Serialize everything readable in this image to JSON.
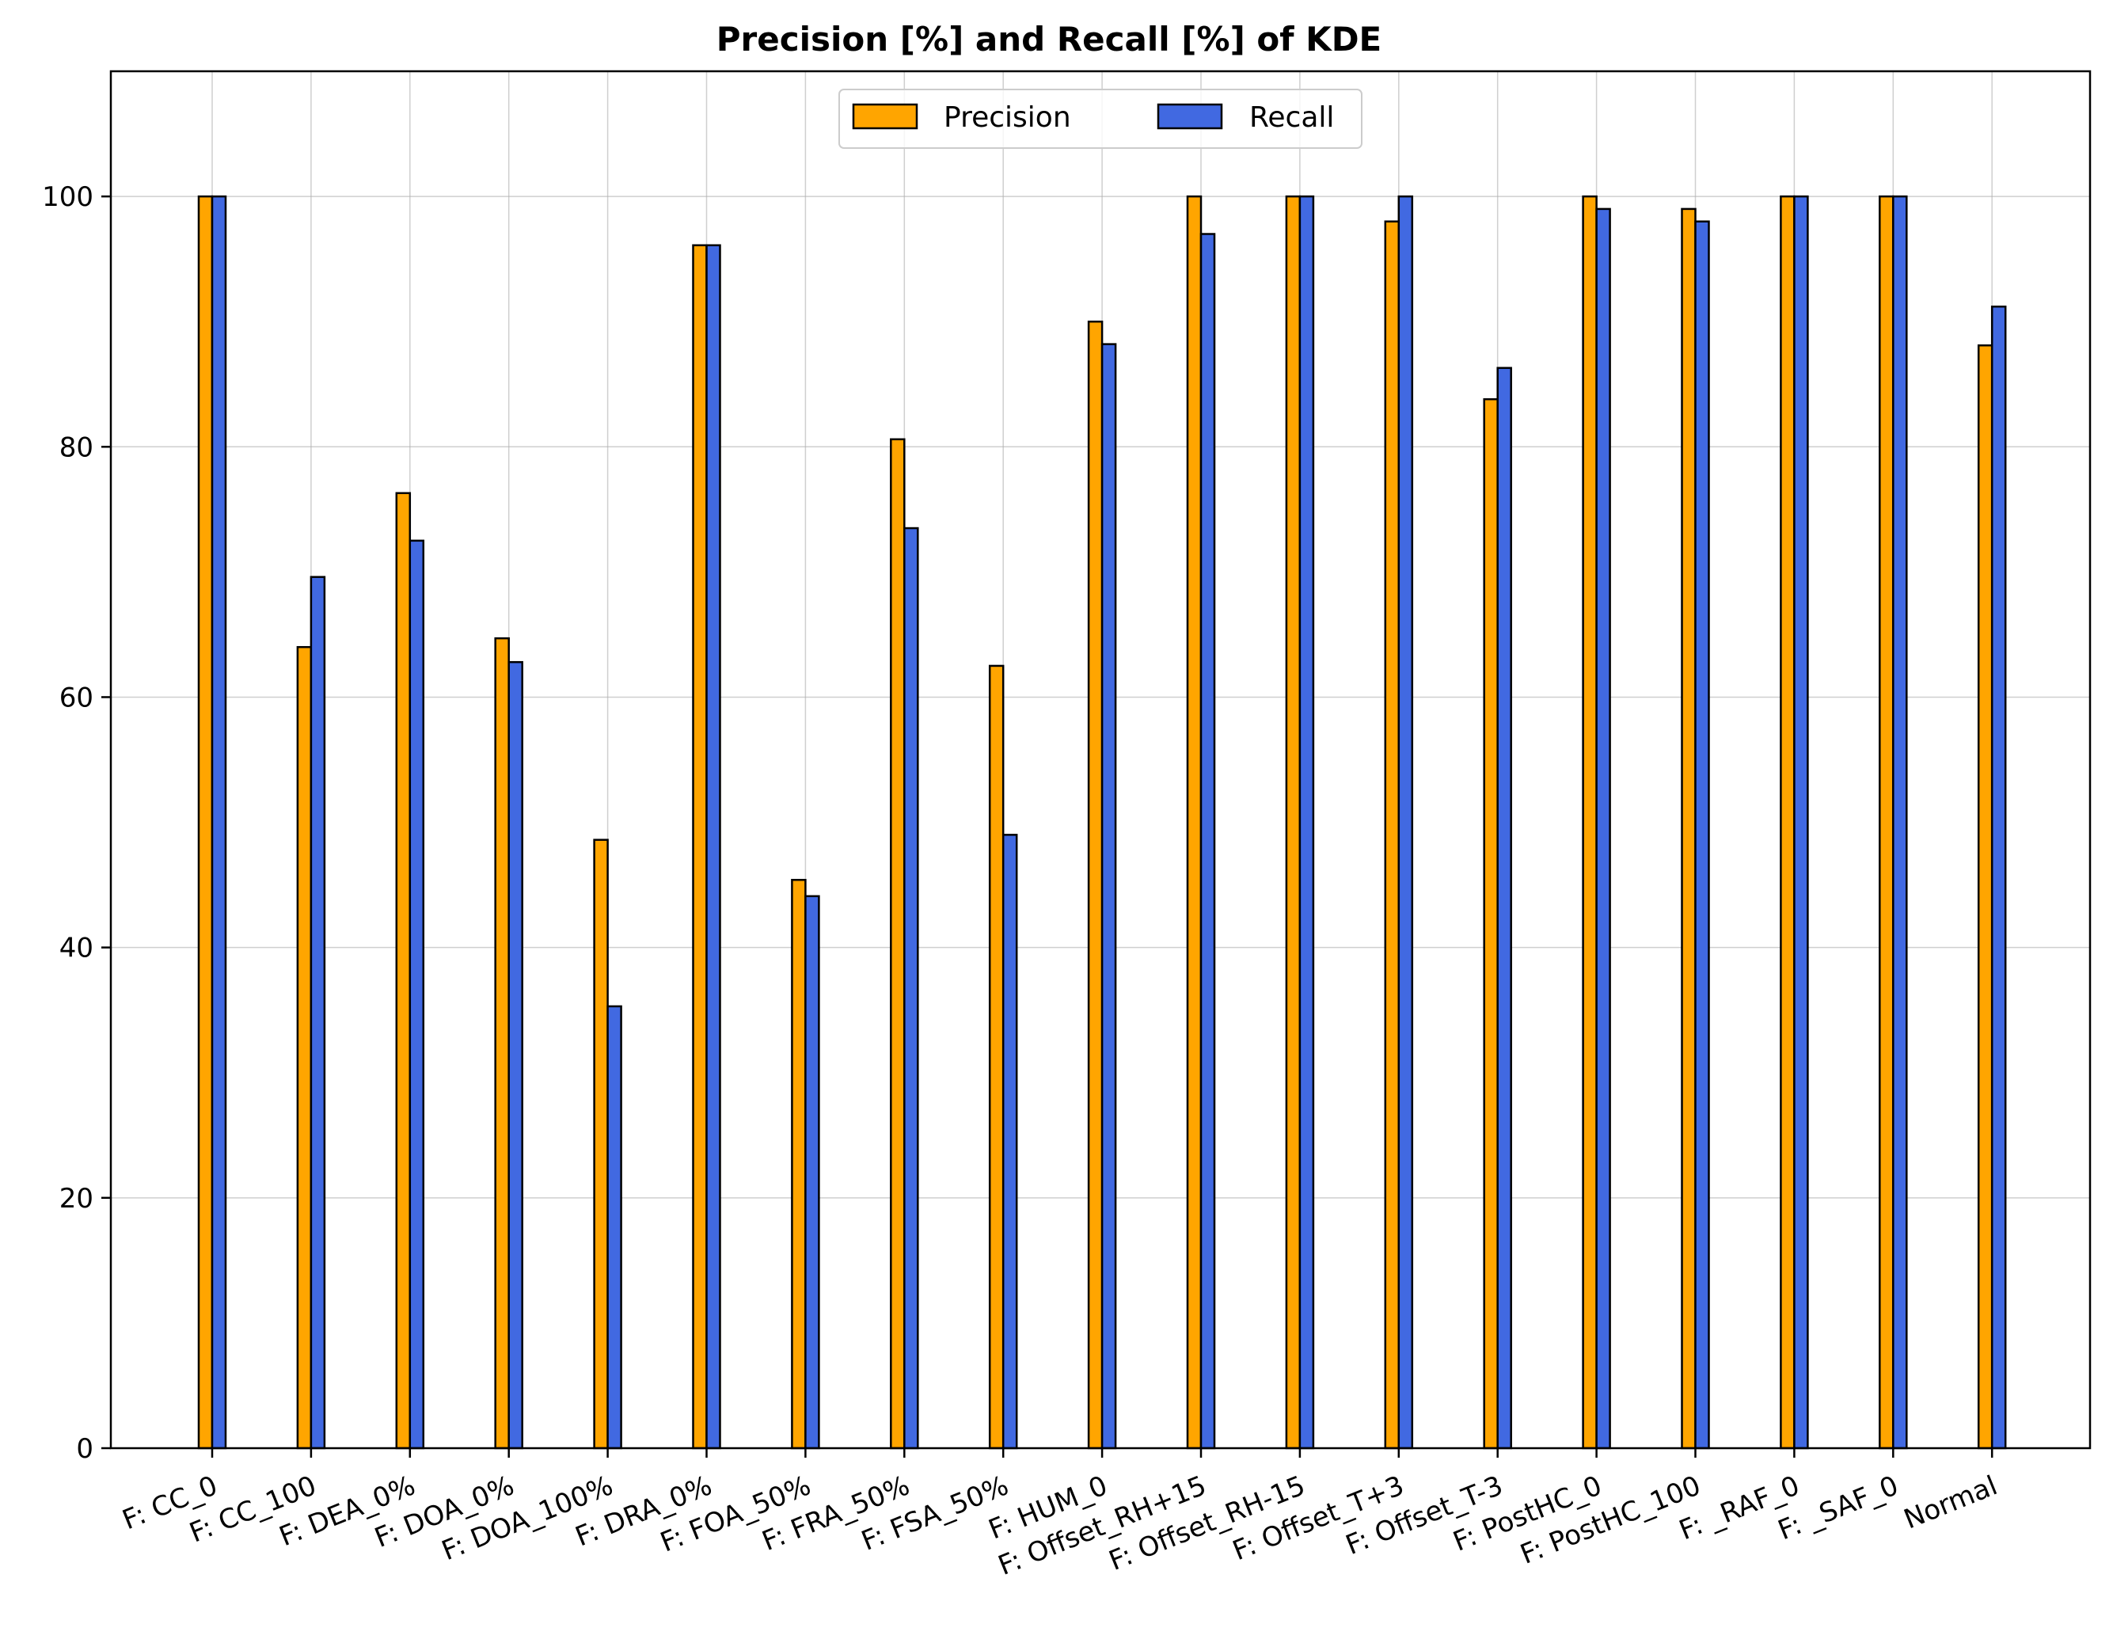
{
  "chart_data": {
    "type": "bar",
    "title": "Precision [%] and Recall [%] of KDE",
    "xlabel": "",
    "ylabel": "",
    "ylim": [
      0,
      110
    ],
    "yticks": [
      0,
      20,
      40,
      60,
      80,
      100
    ],
    "grid": true,
    "legend_position": "top-center",
    "categories": [
      "F: CC_0",
      "F: CC_100",
      "F: DEA_0%",
      "F: DOA_0%",
      "F: DOA_100%",
      "F: DRA_0%",
      "F: FOA_50%",
      "F: FRA_50%",
      "F: FSA_50%",
      "F: HUM_0",
      "F: Offset_RH+15",
      "F: Offset_RH-15",
      "F: Offset_T+3",
      "F: Offset_T-3",
      "F: PostHC_0",
      "F: PostHC_100",
      "F: _RAF_0",
      "F: _SAF_0",
      "Normal"
    ],
    "series": [
      {
        "name": "Precision",
        "color": "#FFA500",
        "values": [
          100,
          64,
          76.3,
          64.7,
          48.6,
          96.1,
          45.4,
          80.6,
          62.5,
          90,
          100,
          100,
          98,
          83.8,
          100,
          99,
          100,
          100,
          88.1
        ]
      },
      {
        "name": "Recall",
        "color": "#4169E1",
        "values": [
          100,
          69.6,
          72.5,
          62.8,
          35.3,
          96.1,
          44.1,
          73.5,
          49,
          88.2,
          97,
          100,
          100,
          86.3,
          99,
          98,
          100,
          100,
          91.2
        ]
      }
    ]
  }
}
